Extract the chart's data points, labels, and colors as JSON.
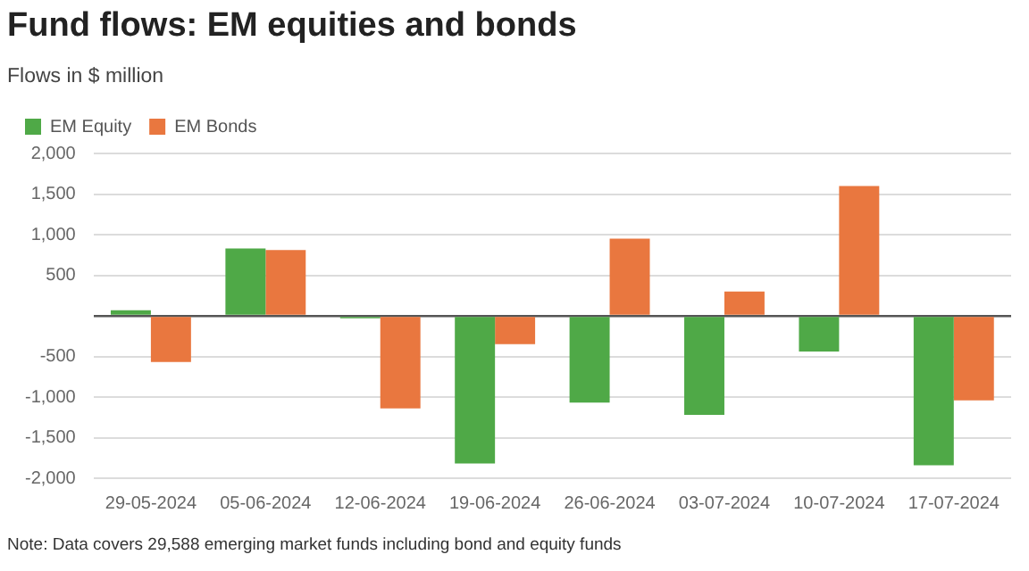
{
  "chart_data": {
    "type": "bar",
    "title": "Fund flows: EM equities and bonds",
    "subtitle": "Flows in $ million",
    "categories": [
      "29-05-2024",
      "05-06-2024",
      "12-06-2024",
      "19-06-2024",
      "26-06-2024",
      "03-07-2024",
      "10-07-2024",
      "17-07-2024"
    ],
    "series": [
      {
        "name": "EM Equity",
        "color": "#4fa947",
        "values": [
          70,
          830,
          -30,
          -1820,
          -1070,
          -1220,
          -440,
          -1840
        ]
      },
      {
        "name": "EM Bonds",
        "color": "#e9773f",
        "values": [
          -570,
          810,
          -1140,
          -350,
          950,
          300,
          1600,
          -1040
        ]
      }
    ],
    "ylim": [
      -2000,
      2000
    ],
    "yticks": [
      {
        "value": -2000,
        "label": "-2,000"
      },
      {
        "value": -1500,
        "label": "-1,500"
      },
      {
        "value": -1000,
        "label": "-1,000"
      },
      -500,
      {
        "value": 0,
        "label": null
      },
      500,
      {
        "value": 1000,
        "label": "1,000"
      },
      {
        "value": 1500,
        "label": "1,500"
      },
      {
        "value": 2000,
        "label": "2,000"
      }
    ],
    "grid": "y",
    "legend": "top left",
    "annotations": [
      "Note: Data covers 29,588 emerging market funds including bond and equity funds"
    ]
  }
}
